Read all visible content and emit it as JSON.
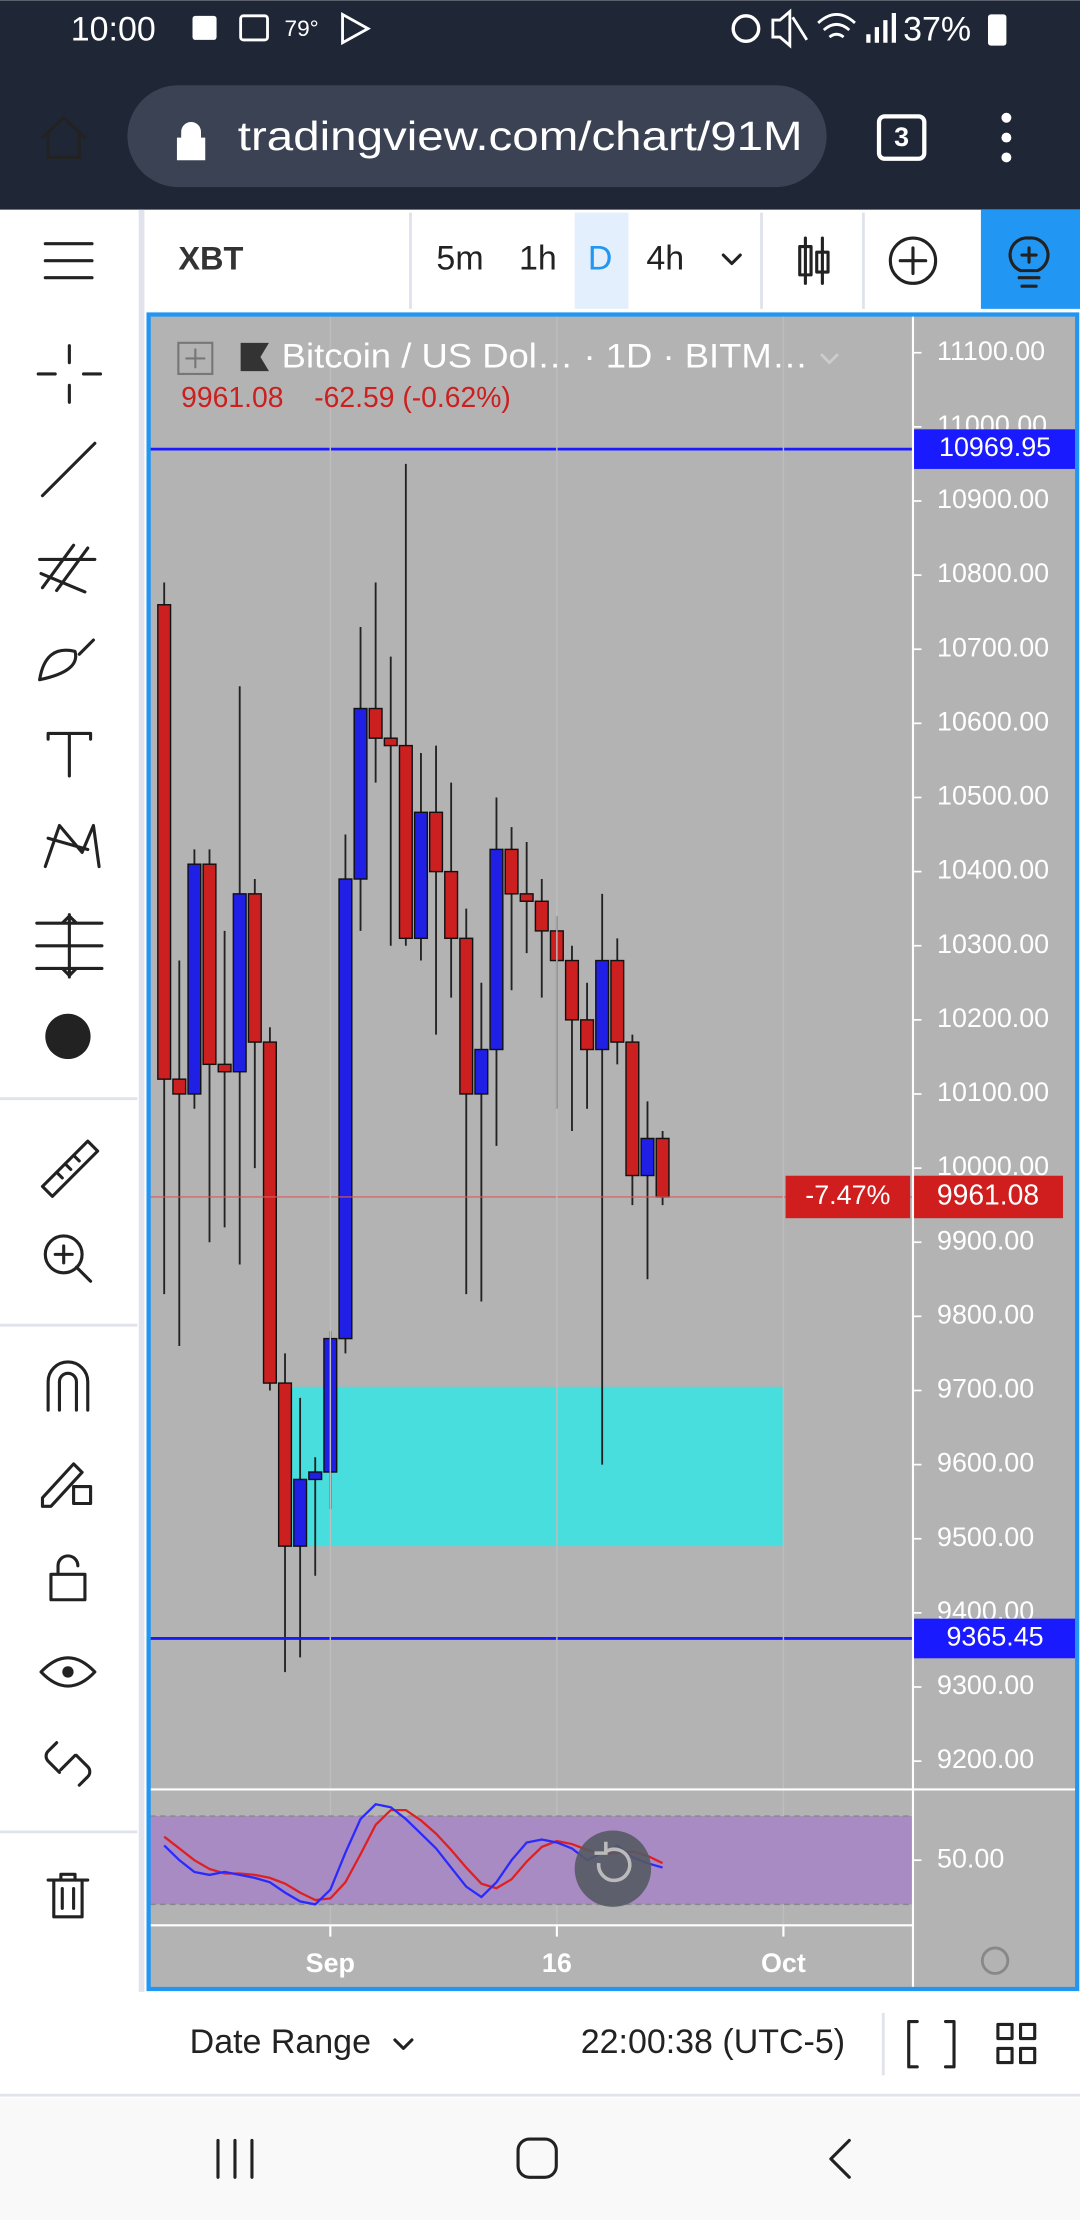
{
  "status_bar": {
    "time": "10:00",
    "temp": "79°",
    "battery": "37%"
  },
  "browser": {
    "url": "tradingview.com/chart/91M",
    "tabs": "3"
  },
  "toolbar": {
    "symbol": "XBT",
    "intervals": [
      "5m",
      "1h",
      "D",
      "4h"
    ],
    "active_interval": 2
  },
  "chart": {
    "type": "candlestick",
    "title": "Bitcoin / US Dol…  · 1D · BITM…",
    "change": "-62.59 (-0.62%)",
    "up_color": "#1f1fe6",
    "down_color": "#cc1f1f",
    "ylim": [
      9130,
      11190
    ],
    "yticks": [
      {
        "value": 11100,
        "label": "11100.00"
      },
      {
        "value": 11000,
        "label": "11000.00"
      },
      {
        "value": 10900,
        "label": "10900.00"
      },
      {
        "value": 10800,
        "label": "10800.00"
      },
      {
        "value": 10700,
        "label": "10700.00"
      },
      {
        "value": 10600,
        "label": "10600.00"
      },
      {
        "value": 10500,
        "label": "10500.00"
      },
      {
        "value": 10400,
        "label": "10400.00"
      },
      {
        "value": 10300,
        "label": "10300.00"
      },
      {
        "value": 10200,
        "label": "10200.00"
      },
      {
        "value": 10100,
        "label": "10100.00"
      },
      {
        "value": 10000,
        "label": "10000.00"
      },
      {
        "value": 9900,
        "label": "9900.00"
      },
      {
        "value": 9800,
        "label": "9800.00"
      },
      {
        "value": 9700,
        "label": "9700.00"
      },
      {
        "value": 9600,
        "label": "9600.00"
      },
      {
        "value": 9500,
        "label": "9500.00"
      },
      {
        "value": 9400,
        "label": "9400.00"
      },
      {
        "value": 9300,
        "label": "9300.00"
      },
      {
        "value": 9200,
        "label": "9200.00"
      }
    ],
    "xticks": [
      {
        "index": 11,
        "label": "Sep"
      },
      {
        "index": 26,
        "label": "16"
      },
      {
        "index": 41,
        "label": "Oct"
      }
    ],
    "hlines": [
      {
        "value": 10969.95,
        "label": "10969.95"
      },
      {
        "value": 9365.45,
        "label": "9365.45"
      }
    ],
    "last": {
      "value": 9961.08,
      "label": "9961.08",
      "change_label": "-7.47%"
    },
    "zone": {
      "top": 9705,
      "bottom": 9490,
      "start_index": 8.3,
      "end_index": 41,
      "color": "#48dede"
    },
    "candles": [
      {
        "open": 10760,
        "high": 10790,
        "low": 9830,
        "close": 10120
      },
      {
        "open": 10120,
        "high": 10280,
        "low": 9760,
        "close": 10100
      },
      {
        "open": 10100,
        "high": 10430,
        "low": 10080,
        "close": 10410
      },
      {
        "open": 10410,
        "high": 10430,
        "low": 9900,
        "close": 10140
      },
      {
        "open": 10140,
        "high": 10320,
        "low": 9920,
        "close": 10130
      },
      {
        "open": 10130,
        "high": 10650,
        "low": 9870,
        "close": 10370
      },
      {
        "open": 10370,
        "high": 10390,
        "low": 10000,
        "close": 10170
      },
      {
        "open": 10170,
        "high": 10190,
        "low": 9700,
        "close": 9710
      },
      {
        "open": 9710,
        "high": 9750,
        "low": 9320,
        "close": 9490
      },
      {
        "open": 9490,
        "high": 9690,
        "low": 9340,
        "close": 9580
      },
      {
        "open": 9580,
        "high": 9610,
        "low": 9450,
        "close": 9590
      },
      {
        "open": 9590,
        "high": 9780,
        "low": 9540,
        "close": 9770
      },
      {
        "open": 9770,
        "high": 10450,
        "low": 9750,
        "close": 10390
      },
      {
        "open": 10390,
        "high": 10730,
        "low": 10320,
        "close": 10620
      },
      {
        "open": 10620,
        "high": 10790,
        "low": 10520,
        "close": 10580
      },
      {
        "open": 10580,
        "high": 10690,
        "low": 10300,
        "close": 10570
      },
      {
        "open": 10570,
        "high": 10950,
        "low": 10300,
        "close": 10310
      },
      {
        "open": 10310,
        "high": 10560,
        "low": 10280,
        "close": 10480
      },
      {
        "open": 10480,
        "high": 10570,
        "low": 10180,
        "close": 10400
      },
      {
        "open": 10400,
        "high": 10520,
        "low": 10230,
        "close": 10310
      },
      {
        "open": 10310,
        "high": 10350,
        "low": 9830,
        "close": 10100
      },
      {
        "open": 10100,
        "high": 10250,
        "low": 9820,
        "close": 10160
      },
      {
        "open": 10160,
        "high": 10500,
        "low": 10030,
        "close": 10430
      },
      {
        "open": 10430,
        "high": 10460,
        "low": 10240,
        "close": 10370
      },
      {
        "open": 10370,
        "high": 10440,
        "low": 10290,
        "close": 10360
      },
      {
        "open": 10360,
        "high": 10390,
        "low": 10230,
        "close": 10320
      },
      {
        "open": 10320,
        "high": 10340,
        "low": 10080,
        "close": 10280
      },
      {
        "open": 10280,
        "high": 10300,
        "low": 10050,
        "close": 10200
      },
      {
        "open": 10200,
        "high": 10250,
        "low": 10080,
        "close": 10160
      },
      {
        "open": 10160,
        "high": 10370,
        "low": 9600,
        "close": 10280
      },
      {
        "open": 10280,
        "high": 10310,
        "low": 10140,
        "close": 10170
      },
      {
        "open": 10170,
        "high": 10180,
        "low": 9950,
        "close": 9990
      },
      {
        "open": 9990,
        "high": 10090,
        "low": 9850,
        "close": 10040
      },
      {
        "open": 10040,
        "high": 10050,
        "low": 9950,
        "close": 9961.08
      }
    ],
    "oscillator": {
      "ylim": [
        0,
        100
      ],
      "bands": [
        20,
        80
      ],
      "ytick": {
        "value": 50,
        "label": "50.00"
      },
      "k": {
        "color": "#2a2aff",
        "values": [
          60,
          50,
          42,
          40,
          42,
          40,
          38,
          35,
          28,
          22,
          20,
          30,
          55,
          78,
          88,
          86,
          78,
          68,
          58,
          45,
          32,
          25,
          35,
          50,
          62,
          64,
          62,
          58,
          50,
          55,
          60,
          52,
          48,
          45
        ]
      },
      "d": {
        "color": "#e02020",
        "values": [
          66,
          58,
          50,
          44,
          41,
          41,
          40,
          38,
          34,
          28,
          23,
          24,
          35,
          54,
          74,
          84,
          84,
          77,
          68,
          57,
          45,
          34,
          31,
          37,
          49,
          59,
          63,
          61,
          57,
          54,
          55,
          56,
          53,
          48
        ]
      }
    }
  },
  "bottom_bar": {
    "date_range": "Date Range",
    "clock": "22:00:38 (UTC-5)"
  }
}
